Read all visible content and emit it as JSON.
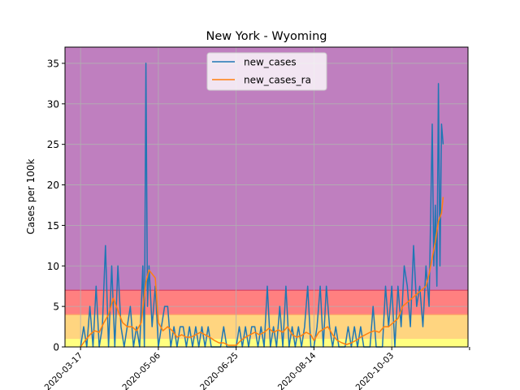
{
  "chart_data": {
    "type": "line",
    "title": "New York - Wyoming",
    "ylabel": "Cases per 100k",
    "xlabel": "",
    "ylim": [
      0,
      37
    ],
    "y_ticks": [
      0,
      5,
      10,
      15,
      20,
      25,
      30,
      35
    ],
    "x_ticks": [
      {
        "date": "2020-03-17",
        "label": "2020-03-17"
      },
      {
        "date": "2020-05-06",
        "label": "2020-05-06"
      },
      {
        "date": "2020-06-25",
        "label": "2020-06-25"
      },
      {
        "date": "2020-08-14",
        "label": "2020-08-14"
      },
      {
        "date": "2020-10-03",
        "label": "2020-10-03"
      },
      {
        "date": "2020-11-22",
        "label": ""
      }
    ],
    "xlim": [
      "2020-03-07",
      "2020-11-21"
    ],
    "grid": true,
    "legend_position": "top-center",
    "bands": [
      {
        "from": 0,
        "to": 1,
        "color": "#ffff80"
      },
      {
        "from": 1,
        "to": 4,
        "color": "#ffd580"
      },
      {
        "from": 4,
        "to": 7,
        "color": "#ff8080"
      },
      {
        "from": 7,
        "to": 37,
        "color": "#bf7fbf"
      }
    ],
    "band_lines": [
      {
        "y": 4,
        "color": "#ff9f66"
      },
      {
        "y": 7,
        "color": "#d94060"
      }
    ],
    "series": [
      {
        "name": "new_cases",
        "color": "#1f77b4",
        "points": [
          [
            "2020-03-17",
            0
          ],
          [
            "2020-03-19",
            2.5
          ],
          [
            "2020-03-21",
            0
          ],
          [
            "2020-03-23",
            5
          ],
          [
            "2020-03-25",
            0
          ],
          [
            "2020-03-27",
            7.5
          ],
          [
            "2020-03-29",
            0
          ],
          [
            "2020-03-31",
            2.5
          ],
          [
            "2020-04-02",
            12.5
          ],
          [
            "2020-04-04",
            0
          ],
          [
            "2020-04-06",
            10
          ],
          [
            "2020-04-08",
            0
          ],
          [
            "2020-04-10",
            10
          ],
          [
            "2020-04-12",
            2.5
          ],
          [
            "2020-04-14",
            0
          ],
          [
            "2020-04-16",
            2.5
          ],
          [
            "2020-04-18",
            5
          ],
          [
            "2020-04-20",
            0
          ],
          [
            "2020-04-22",
            2.5
          ],
          [
            "2020-04-24",
            0
          ],
          [
            "2020-04-26",
            10
          ],
          [
            "2020-04-27",
            0
          ],
          [
            "2020-04-28",
            35
          ],
          [
            "2020-04-29",
            5
          ],
          [
            "2020-04-30",
            10
          ],
          [
            "2020-05-02",
            2.5
          ],
          [
            "2020-05-04",
            7.5
          ],
          [
            "2020-05-06",
            0
          ],
          [
            "2020-05-08",
            2.5
          ],
          [
            "2020-05-10",
            5
          ],
          [
            "2020-05-12",
            5
          ],
          [
            "2020-05-14",
            0
          ],
          [
            "2020-05-16",
            2.5
          ],
          [
            "2020-05-18",
            0
          ],
          [
            "2020-05-20",
            2.5
          ],
          [
            "2020-05-22",
            2.5
          ],
          [
            "2020-05-24",
            0
          ],
          [
            "2020-05-26",
            2.5
          ],
          [
            "2020-05-28",
            0
          ],
          [
            "2020-05-30",
            2.5
          ],
          [
            "2020-06-01",
            0
          ],
          [
            "2020-06-03",
            2.5
          ],
          [
            "2020-06-05",
            0
          ],
          [
            "2020-06-07",
            2.5
          ],
          [
            "2020-06-09",
            0
          ],
          [
            "2020-06-15",
            0
          ],
          [
            "2020-06-17",
            2.5
          ],
          [
            "2020-06-19",
            0
          ],
          [
            "2020-06-25",
            0
          ],
          [
            "2020-06-27",
            2.5
          ],
          [
            "2020-06-29",
            0
          ],
          [
            "2020-07-01",
            2.5
          ],
          [
            "2020-07-03",
            0
          ],
          [
            "2020-07-05",
            2.5
          ],
          [
            "2020-07-07",
            2.5
          ],
          [
            "2020-07-09",
            0
          ],
          [
            "2020-07-11",
            2.5
          ],
          [
            "2020-07-13",
            0
          ],
          [
            "2020-07-15",
            7.5
          ],
          [
            "2020-07-17",
            0
          ],
          [
            "2020-07-19",
            2.5
          ],
          [
            "2020-07-21",
            0
          ],
          [
            "2020-07-23",
            5
          ],
          [
            "2020-07-25",
            0
          ],
          [
            "2020-07-27",
            7.5
          ],
          [
            "2020-07-29",
            0
          ],
          [
            "2020-07-31",
            2.5
          ],
          [
            "2020-08-02",
            0
          ],
          [
            "2020-08-04",
            2.5
          ],
          [
            "2020-08-06",
            0
          ],
          [
            "2020-08-08",
            2.5
          ],
          [
            "2020-08-10",
            7.5
          ],
          [
            "2020-08-12",
            0
          ],
          [
            "2020-08-14",
            0
          ],
          [
            "2020-08-16",
            2.5
          ],
          [
            "2020-08-18",
            7.5
          ],
          [
            "2020-08-20",
            0
          ],
          [
            "2020-08-22",
            7.5
          ],
          [
            "2020-08-24",
            2.5
          ],
          [
            "2020-08-26",
            0
          ],
          [
            "2020-08-28",
            2.5
          ],
          [
            "2020-08-30",
            0
          ],
          [
            "2020-09-03",
            0
          ],
          [
            "2020-09-05",
            2.5
          ],
          [
            "2020-09-07",
            0
          ],
          [
            "2020-09-09",
            2.5
          ],
          [
            "2020-09-11",
            0
          ],
          [
            "2020-09-13",
            2.5
          ],
          [
            "2020-09-15",
            0
          ],
          [
            "2020-09-19",
            0
          ],
          [
            "2020-09-21",
            5
          ],
          [
            "2020-09-23",
            0
          ],
          [
            "2020-09-27",
            0
          ],
          [
            "2020-09-29",
            7.5
          ],
          [
            "2020-10-01",
            2.5
          ],
          [
            "2020-10-03",
            7.5
          ],
          [
            "2020-10-05",
            0
          ],
          [
            "2020-10-07",
            7.5
          ],
          [
            "2020-10-09",
            2.5
          ],
          [
            "2020-10-11",
            10
          ],
          [
            "2020-10-13",
            7.5
          ],
          [
            "2020-10-15",
            2.5
          ],
          [
            "2020-10-17",
            12.5
          ],
          [
            "2020-10-19",
            5
          ],
          [
            "2020-10-21",
            7.5
          ],
          [
            "2020-10-23",
            2.5
          ],
          [
            "2020-10-25",
            10
          ],
          [
            "2020-10-27",
            5
          ],
          [
            "2020-10-29",
            27.5
          ],
          [
            "2020-10-30",
            10
          ],
          [
            "2020-10-31",
            17.5
          ],
          [
            "2020-11-01",
            7.5
          ],
          [
            "2020-11-02",
            32.5
          ],
          [
            "2020-11-03",
            10
          ],
          [
            "2020-11-04",
            27.5
          ],
          [
            "2020-11-05",
            25
          ]
        ]
      },
      {
        "name": "new_cases_ra",
        "color": "#ff7f0e",
        "points": [
          [
            "2020-03-17",
            0
          ],
          [
            "2020-03-20",
            0.8
          ],
          [
            "2020-03-23",
            1.5
          ],
          [
            "2020-03-26",
            2
          ],
          [
            "2020-03-29",
            1.8
          ],
          [
            "2020-04-01",
            3
          ],
          [
            "2020-04-04",
            4
          ],
          [
            "2020-04-07",
            6
          ],
          [
            "2020-04-10",
            4.5
          ],
          [
            "2020-04-13",
            3
          ],
          [
            "2020-04-16",
            2.5
          ],
          [
            "2020-04-19",
            2.5
          ],
          [
            "2020-04-22",
            2
          ],
          [
            "2020-04-25",
            3
          ],
          [
            "2020-04-28",
            8
          ],
          [
            "2020-04-30",
            9.5
          ],
          [
            "2020-05-02",
            9
          ],
          [
            "2020-05-04",
            8.5
          ],
          [
            "2020-05-06",
            3
          ],
          [
            "2020-05-09",
            2
          ],
          [
            "2020-05-12",
            2.5
          ],
          [
            "2020-05-15",
            2
          ],
          [
            "2020-05-18",
            1.2
          ],
          [
            "2020-05-21",
            1.5
          ],
          [
            "2020-05-24",
            1.2
          ],
          [
            "2020-05-27",
            1.2
          ],
          [
            "2020-05-30",
            1.5
          ],
          [
            "2020-06-02",
            1.8
          ],
          [
            "2020-06-05",
            1.5
          ],
          [
            "2020-06-08",
            1.2
          ],
          [
            "2020-06-11",
            0.8
          ],
          [
            "2020-06-14",
            0.5
          ],
          [
            "2020-06-17",
            0.5
          ],
          [
            "2020-06-20",
            0.2
          ],
          [
            "2020-06-25",
            0.2
          ],
          [
            "2020-06-28",
            0.8
          ],
          [
            "2020-07-01",
            1.2
          ],
          [
            "2020-07-04",
            1.5
          ],
          [
            "2020-07-07",
            1.8
          ],
          [
            "2020-07-10",
            1.5
          ],
          [
            "2020-07-13",
            1.8
          ],
          [
            "2020-07-16",
            2.3
          ],
          [
            "2020-07-19",
            1.8
          ],
          [
            "2020-07-22",
            2.1
          ],
          [
            "2020-07-25",
            1.8
          ],
          [
            "2020-07-28",
            2.5
          ],
          [
            "2020-07-31",
            1.5
          ],
          [
            "2020-08-03",
            1.2
          ],
          [
            "2020-08-06",
            1.4
          ],
          [
            "2020-08-09",
            1.8
          ],
          [
            "2020-08-12",
            1.5
          ],
          [
            "2020-08-14",
            0.8
          ],
          [
            "2020-08-17",
            1.8
          ],
          [
            "2020-08-20",
            2.2
          ],
          [
            "2020-08-23",
            2.5
          ],
          [
            "2020-08-26",
            1.5
          ],
          [
            "2020-08-29",
            0.8
          ],
          [
            "2020-09-01",
            0.5
          ],
          [
            "2020-09-04",
            0.3
          ],
          [
            "2020-09-07",
            0.5
          ],
          [
            "2020-09-10",
            0.8
          ],
          [
            "2020-09-13",
            1.2
          ],
          [
            "2020-09-16",
            1.5
          ],
          [
            "2020-09-19",
            1.8
          ],
          [
            "2020-09-22",
            2
          ],
          [
            "2020-09-25",
            1.8
          ],
          [
            "2020-09-28",
            2.5
          ],
          [
            "2020-10-01",
            2.5
          ],
          [
            "2020-10-04",
            3
          ],
          [
            "2020-10-07",
            3.5
          ],
          [
            "2020-10-10",
            5
          ],
          [
            "2020-10-13",
            5.5
          ],
          [
            "2020-10-16",
            6
          ],
          [
            "2020-10-19",
            6.5
          ],
          [
            "2020-10-22",
            7
          ],
          [
            "2020-10-25",
            7.5
          ],
          [
            "2020-10-27",
            9
          ],
          [
            "2020-10-29",
            11
          ],
          [
            "2020-10-31",
            13
          ],
          [
            "2020-11-02",
            15.5
          ],
          [
            "2020-11-04",
            16.5
          ],
          [
            "2020-11-05",
            18.5
          ]
        ]
      }
    ]
  }
}
